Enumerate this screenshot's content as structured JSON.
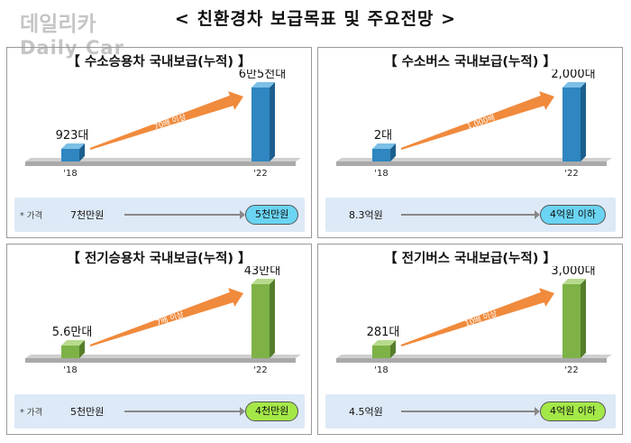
{
  "title": "< 친환경차 보급목표 및 주요전망 >",
  "watermark": {
    "line1": "데일리카",
    "line2": "Daily Car"
  },
  "colors": {
    "blue_bar": "#2f86c0",
    "green_bar": "#7eb247",
    "arrow": "#f08a3c",
    "pill_blue": "#6ad4f2",
    "pill_green": "#a4e848",
    "price_bg": "#dde9f6"
  },
  "panels": [
    {
      "title": "【 수소승용차 국내보급(누적) 】",
      "price_note": "* 가격",
      "price_from": "7천만원",
      "price_to": "5천만원",
      "pill": "blue"
    },
    {
      "title": "【 수소버스 국내보급(누적) 】",
      "price_note": "",
      "price_from": "8.3억원",
      "price_to": "4억원 이하",
      "pill": "blue"
    },
    {
      "title": "【 전기승용차 국내보급(누적) 】",
      "price_note": "* 가격",
      "price_from": "5천만원",
      "price_to": "4천만원",
      "pill": "green"
    },
    {
      "title": "【 전기버스 국내보급(누적) 】",
      "price_note": "",
      "price_from": "4.5억원",
      "price_to": "4억원 이하",
      "pill": "green"
    }
  ],
  "chart_data": [
    {
      "type": "bar",
      "categories": [
        "'18",
        "'22"
      ],
      "values": [
        923,
        65000
      ],
      "value_labels": [
        "923대",
        "6만5천대"
      ],
      "growth_label": "70배 이상",
      "color": "blue"
    },
    {
      "type": "bar",
      "categories": [
        "'18",
        "'22"
      ],
      "values": [
        2,
        2000
      ],
      "value_labels": [
        "2대",
        "2,000대"
      ],
      "growth_label": "1,000배",
      "color": "blue"
    },
    {
      "type": "bar",
      "categories": [
        "'18",
        "'22"
      ],
      "values": [
        56000,
        430000
      ],
      "value_labels": [
        "5.6만대",
        "43만대"
      ],
      "growth_label": "7배 이상",
      "color": "green"
    },
    {
      "type": "bar",
      "categories": [
        "'18",
        "'22"
      ],
      "values": [
        281,
        3000
      ],
      "value_labels": [
        "281대",
        "3,000대"
      ],
      "growth_label": "10배 이상",
      "color": "green"
    }
  ]
}
